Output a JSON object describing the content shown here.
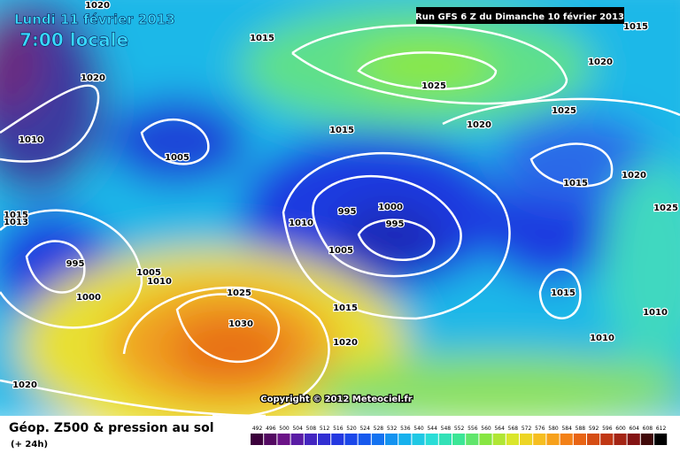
{
  "header": {
    "date": "Lundi 11 février 2013",
    "time": "7:00 locale",
    "run": "Run GFS 6 Z du Dimanche 10 février 2013"
  },
  "isobar_labels": [
    1020,
    1015,
    1020,
    1010,
    1005,
    1025,
    1020,
    1015,
    1020,
    1025,
    1015,
    1020,
    1025,
    1015,
    1013,
    995,
    1005,
    1010,
    1000,
    995,
    1000,
    995,
    1010,
    1005,
    1025,
    1015,
    1030,
    1020,
    1015,
    1010,
    1010,
    1020,
    1015
  ],
  "copyright": "Copyright © 2012 Meteociel.fr",
  "legend": {
    "title": "Géop. Z500 & pression au sol",
    "subtitle": "(+ 24h)",
    "scale": [
      492,
      496,
      500,
      504,
      508,
      512,
      516,
      520,
      524,
      528,
      532,
      536,
      540,
      544,
      548,
      552,
      556,
      560,
      564,
      568,
      572,
      576,
      580,
      584,
      588,
      592,
      596,
      600,
      604,
      608,
      612
    ]
  }
}
